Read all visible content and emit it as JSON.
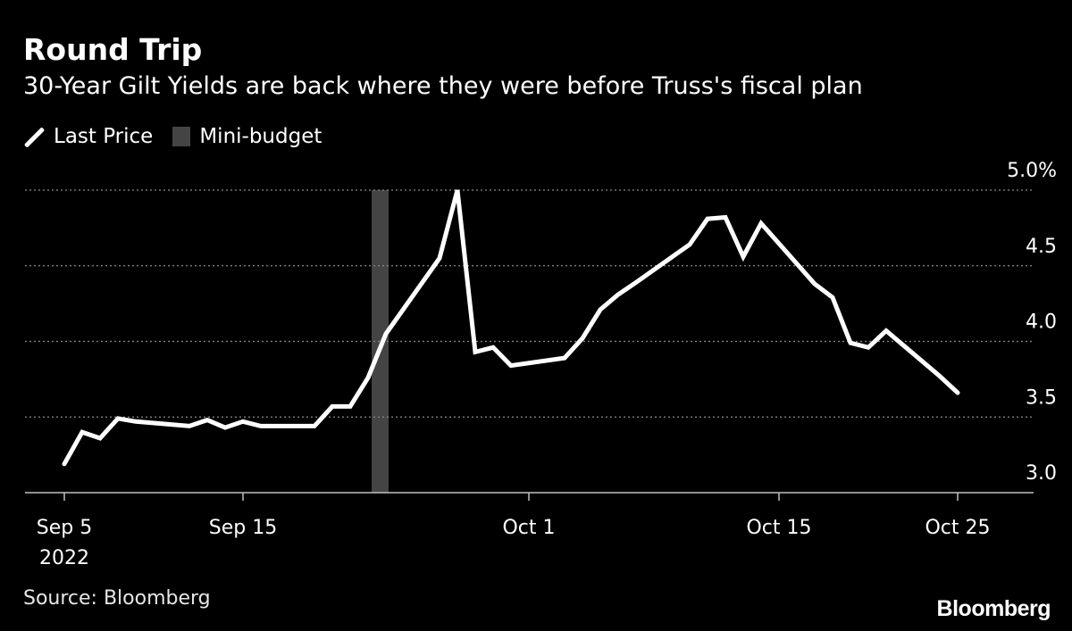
{
  "header": {
    "title": "Round Trip",
    "subtitle": "30-Year Gilt Yields are back where they were before Truss's fiscal plan"
  },
  "legend": {
    "line_label": "Last Price",
    "band_label": "Mini-budget"
  },
  "footer": {
    "source": "Source: Bloomberg",
    "brand": "Bloomberg"
  },
  "colors": {
    "background": "#000000",
    "line": "#ffffff",
    "band": "#444444",
    "grid": "#8a8a8a"
  },
  "chart_data": {
    "type": "line",
    "title": "Round Trip",
    "subtitle": "30-Year Gilt Yields are back where they were before Truss's fiscal plan",
    "xlabel": "",
    "ylabel": "",
    "x_range": [
      "2022-09-05",
      "2022-10-25"
    ],
    "ylim": [
      3.0,
      5.0
    ],
    "y_ticks": [
      {
        "value": 5.0,
        "label": "5.0%"
      },
      {
        "value": 4.5,
        "label": "4.5"
      },
      {
        "value": 4.0,
        "label": "4.0"
      },
      {
        "value": 3.5,
        "label": "3.5"
      },
      {
        "value": 3.0,
        "label": "3.0"
      }
    ],
    "x_ticks": [
      {
        "date": "2022-09-05",
        "label": "Sep 5",
        "sublabel": "2022"
      },
      {
        "date": "2022-09-15",
        "label": "Sep 15",
        "sublabel": ""
      },
      {
        "date": "2022-10-01",
        "label": "Oct 1",
        "sublabel": ""
      },
      {
        "date": "2022-10-15",
        "label": "Oct 15",
        "sublabel": ""
      },
      {
        "date": "2022-10-25",
        "label": "Oct 25",
        "sublabel": ""
      }
    ],
    "grid": true,
    "legend_position": "top-left",
    "band": {
      "name": "Mini-budget",
      "start": "2022-09-23",
      "end": "2022-09-23"
    },
    "series": [
      {
        "name": "Last Price",
        "points": [
          {
            "x": "2022-09-05",
            "y": 3.19
          },
          {
            "x": "2022-09-06",
            "y": 3.4
          },
          {
            "x": "2022-09-07",
            "y": 3.36
          },
          {
            "x": "2022-09-08",
            "y": 3.49
          },
          {
            "x": "2022-09-09",
            "y": 3.47
          },
          {
            "x": "2022-09-12",
            "y": 3.44
          },
          {
            "x": "2022-09-13",
            "y": 3.48
          },
          {
            "x": "2022-09-14",
            "y": 3.43
          },
          {
            "x": "2022-09-15",
            "y": 3.47
          },
          {
            "x": "2022-09-16",
            "y": 3.44
          },
          {
            "x": "2022-09-19",
            "y": 3.44
          },
          {
            "x": "2022-09-20",
            "y": 3.57
          },
          {
            "x": "2022-09-21",
            "y": 3.57
          },
          {
            "x": "2022-09-22",
            "y": 3.76
          },
          {
            "x": "2022-09-23",
            "y": 4.05
          },
          {
            "x": "2022-09-26",
            "y": 4.55
          },
          {
            "x": "2022-09-27",
            "y": 5.0
          },
          {
            "x": "2022-09-28",
            "y": 3.93
          },
          {
            "x": "2022-09-29",
            "y": 3.96
          },
          {
            "x": "2022-09-30",
            "y": 3.84
          },
          {
            "x": "2022-10-03",
            "y": 3.89
          },
          {
            "x": "2022-10-04",
            "y": 4.02
          },
          {
            "x": "2022-10-05",
            "y": 4.21
          },
          {
            "x": "2022-10-06",
            "y": 4.31
          },
          {
            "x": "2022-10-07",
            "y": 4.39
          },
          {
            "x": "2022-10-10",
            "y": 4.64
          },
          {
            "x": "2022-10-11",
            "y": 4.81
          },
          {
            "x": "2022-10-12",
            "y": 4.82
          },
          {
            "x": "2022-10-13",
            "y": 4.56
          },
          {
            "x": "2022-10-14",
            "y": 4.78
          },
          {
            "x": "2022-10-17",
            "y": 4.38
          },
          {
            "x": "2022-10-18",
            "y": 4.29
          },
          {
            "x": "2022-10-19",
            "y": 3.99
          },
          {
            "x": "2022-10-20",
            "y": 3.96
          },
          {
            "x": "2022-10-21",
            "y": 4.07
          },
          {
            "x": "2022-10-24",
            "y": 3.77
          },
          {
            "x": "2022-10-25",
            "y": 3.66
          }
        ]
      }
    ]
  }
}
